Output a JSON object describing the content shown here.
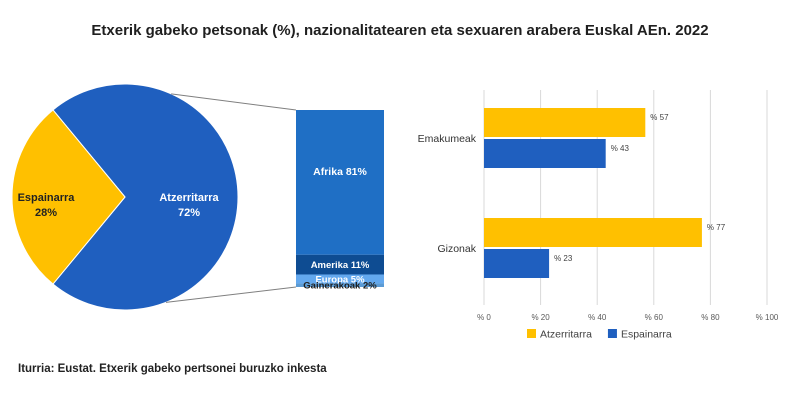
{
  "title": "Etxerik gabeko petsonak (%), nazionalitatearen eta sexuaren arabera Euskal AEn. 2022",
  "source": "Iturria: Eustat. Etxerik gabeko pertsonei buruzko inkesta",
  "colors": {
    "atzerritarra": "#FFC000",
    "espainarra": "#1F5FBF",
    "pie_espainarra": "#FFC000",
    "pie_atzerritarra": "#1F5FBF",
    "afrika": "#1F6FC5",
    "amerika": "#0E4C92",
    "europa": "#63A8EE",
    "gainerakoak": "#5B9BD5",
    "grid": "#D9D9D9",
    "axis_text": "#595959"
  },
  "chart_data": [
    {
      "type": "pie",
      "title": "",
      "slices": [
        {
          "label": "Atzerritarra",
          "pct_label": "72%",
          "value": 72
        },
        {
          "label": "Espainarra",
          "pct_label": "28%",
          "value": 28
        }
      ]
    },
    {
      "type": "bar",
      "orientation": "stacked-vertical",
      "title": "",
      "segments": [
        {
          "label": "Afrika 81%",
          "value": 81
        },
        {
          "label": "Amerika 11%",
          "value": 11
        },
        {
          "label": "Europa 5%",
          "value": 5
        },
        {
          "label": "Gainerakoak 2%",
          "value": 2
        }
      ]
    },
    {
      "type": "bar",
      "orientation": "horizontal",
      "title": "",
      "categories": [
        "Emakumeak",
        "Gizonak"
      ],
      "series": [
        {
          "name": "Atzerritarra",
          "values": [
            57,
            77
          ],
          "labels": [
            "% 57",
            "% 77"
          ]
        },
        {
          "name": "Espainarra",
          "values": [
            43,
            23
          ],
          "labels": [
            "% 43",
            "% 23"
          ]
        }
      ],
      "xlim": [
        0,
        100
      ],
      "xticks": [
        0,
        20,
        40,
        60,
        80,
        100
      ],
      "xtick_labels": [
        "% 0",
        "% 20",
        "% 40",
        "% 60",
        "% 80",
        "% 100"
      ],
      "grid": true,
      "legend": "bottom-center"
    }
  ]
}
